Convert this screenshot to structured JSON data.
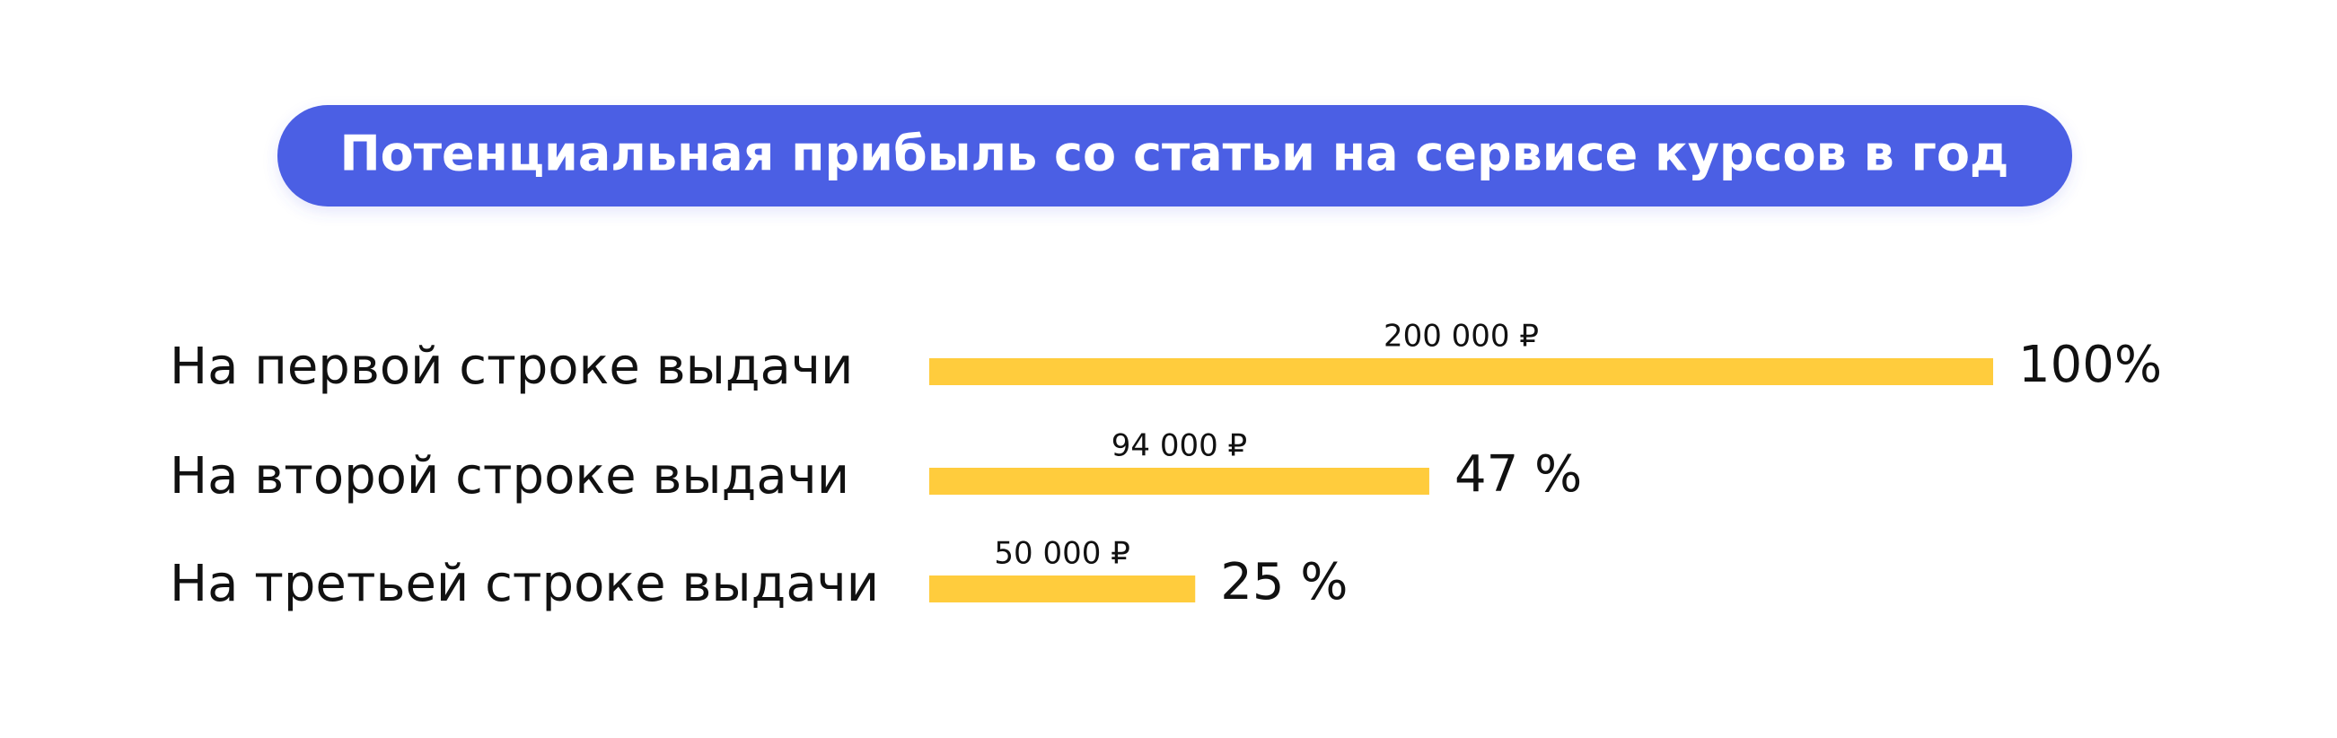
{
  "chart_data": {
    "type": "hbar",
    "title": "Потенциальная прибыль со статьи на сервисе курсов в год",
    "categories": [
      "На первой строке выдачи",
      "На второй строке выдачи",
      "На третьей строке выдачи"
    ],
    "values": [
      200000,
      94000,
      50000
    ],
    "value_labels": [
      "200 000 ₽",
      "94 000 ₽",
      "50 000 ₽"
    ],
    "percent_labels": [
      "100%",
      "47 %",
      "25 %"
    ],
    "xlim": [
      0,
      200000
    ],
    "color": "#ffcc3d"
  }
}
